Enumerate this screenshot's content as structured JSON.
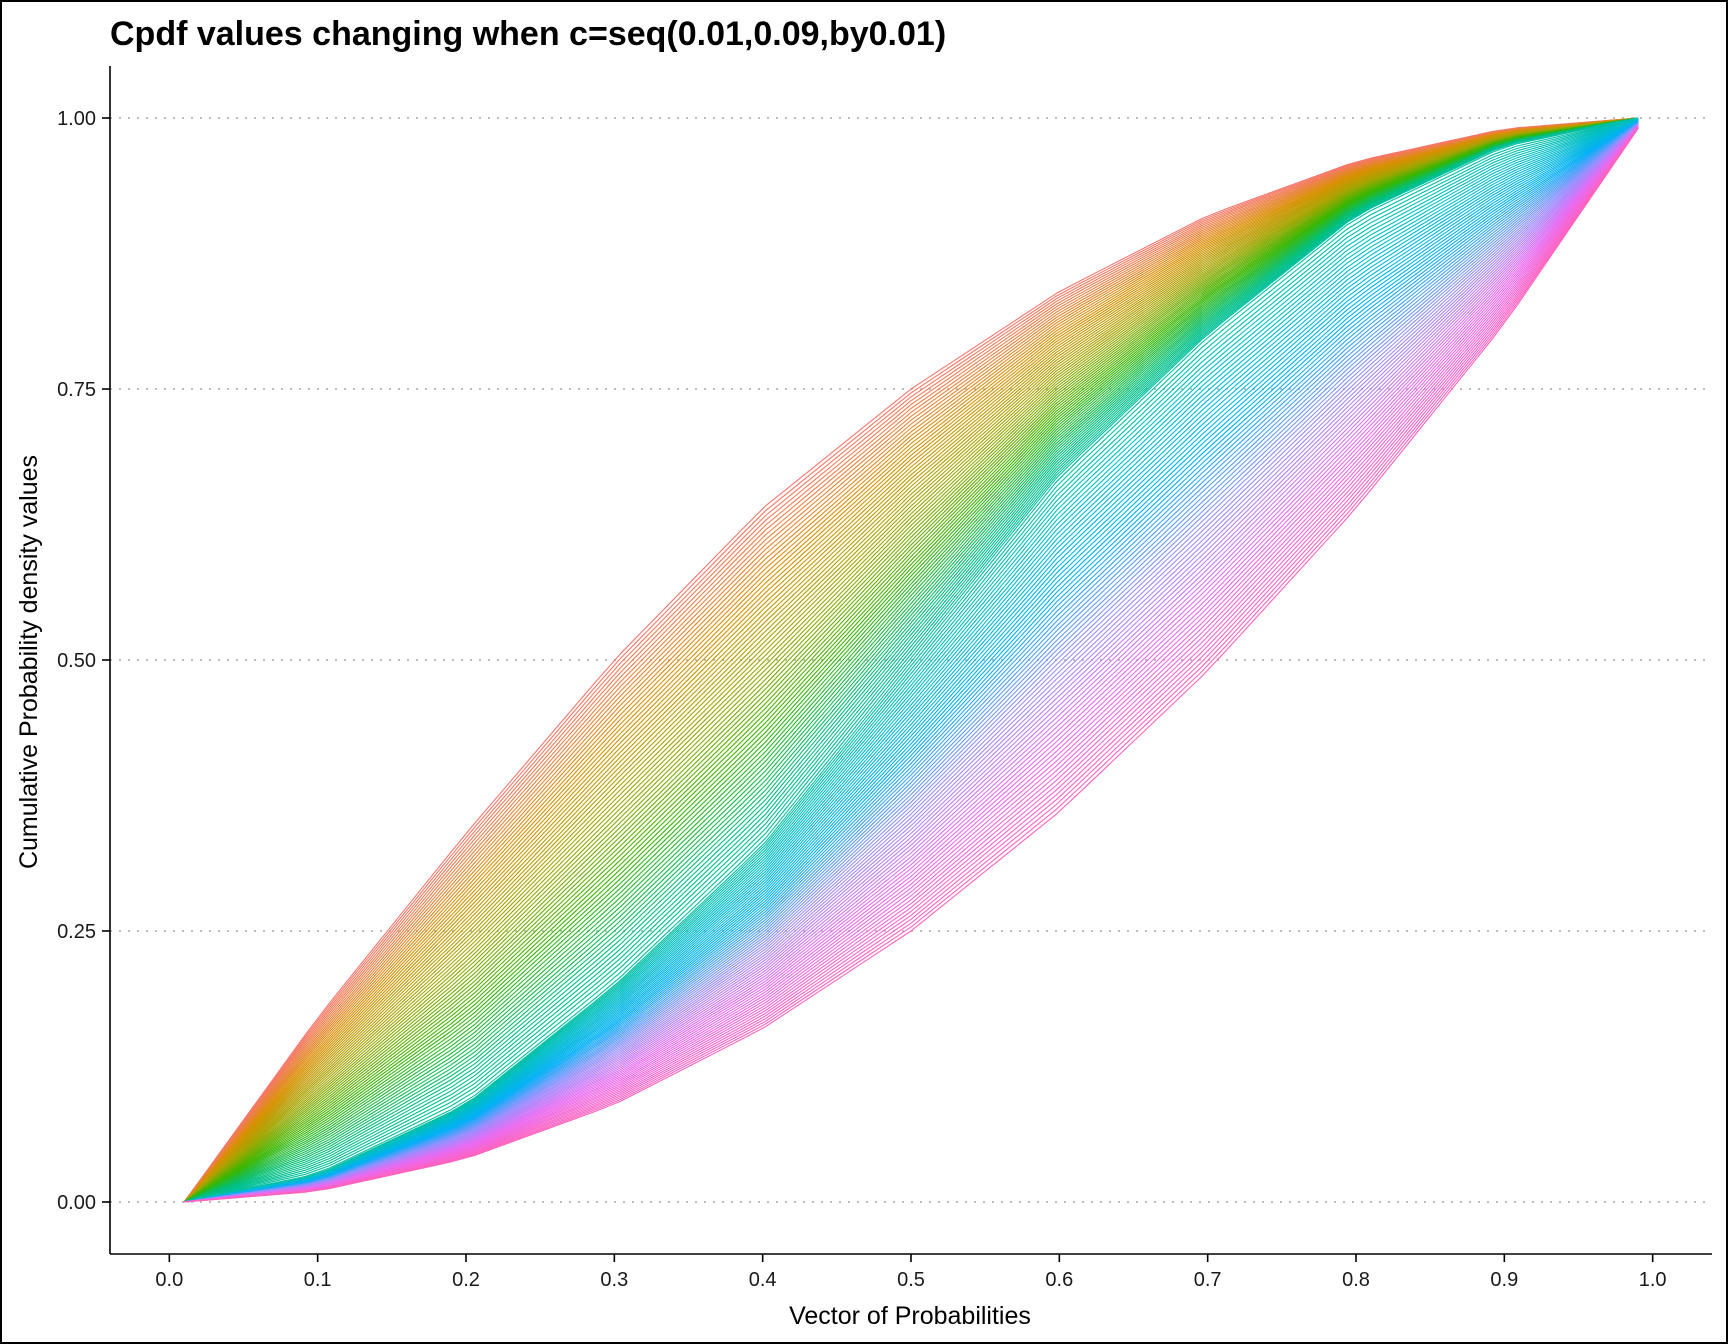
{
  "chart_data": {
    "type": "line",
    "title": "Cpdf values changing when c=seq(0.01,0.09,by0.01)",
    "xlabel": "Vector of Probabilities",
    "ylabel": "Cumulative Probability density values",
    "xlim": [
      -0.04,
      1.04
    ],
    "ylim": [
      -0.048,
      1.048
    ],
    "x_ticks": [
      0.0,
      0.1,
      0.2,
      0.3,
      0.4,
      0.5,
      0.6,
      0.7,
      0.8,
      0.9,
      1.0
    ],
    "x_tick_labels": [
      "0.0",
      "0.1",
      "0.2",
      "0.3",
      "0.4",
      "0.5",
      "0.6",
      "0.7",
      "0.8",
      "0.9",
      "1.0"
    ],
    "y_ticks": [
      0.0,
      0.25,
      0.5,
      0.75,
      1.0
    ],
    "y_tick_labels": [
      "0.00",
      "0.25",
      "0.50",
      "0.75",
      "1.00"
    ],
    "x_range": [
      0.01,
      0.99
    ],
    "grid": "horizontal-dotted",
    "legend": "none",
    "palette": [
      "#F8766D",
      "#D89000",
      "#A3A500",
      "#39B600",
      "#00BF7D",
      "#00BFC4",
      "#00B0F6",
      "#9590FF",
      "#E76BF3",
      "#FF62BC"
    ],
    "series": [
      {
        "start_x": 0.01,
        "y_at": {
          "0.1": 0.17,
          "0.2": 0.34,
          "0.3": 0.5,
          "0.4": 0.64,
          "0.5": 0.75,
          "0.6": 0.84,
          "0.7": 0.91,
          "0.8": 0.96,
          "0.9": 0.99,
          "0.99": 1.0
        }
      },
      {
        "start_x": 0.01,
        "y_at": {
          "0.1": 0.025,
          "0.2": 0.09,
          "0.3": 0.2,
          "0.4": 0.33,
          "0.5": 0.5,
          "0.6": 0.67,
          "0.7": 0.8,
          "0.8": 0.91,
          "0.9": 0.975,
          "0.99": 1.0
        }
      },
      {
        "start_x": 0.01,
        "y_at": {
          "0.1": 0.01,
          "0.2": 0.04,
          "0.3": 0.09,
          "0.4": 0.16,
          "0.5": 0.25,
          "0.6": 0.36,
          "0.7": 0.49,
          "0.8": 0.64,
          "0.9": 0.81,
          "0.99": 0.99
        }
      }
    ]
  }
}
